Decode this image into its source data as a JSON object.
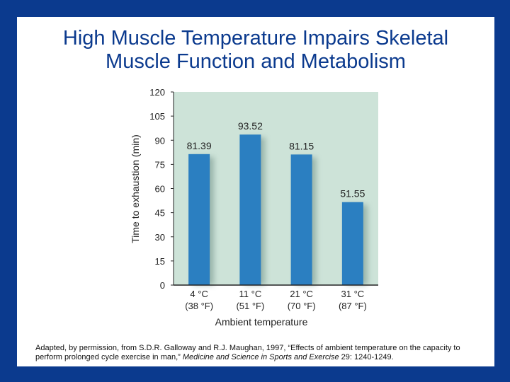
{
  "slide": {
    "title_line1": "High Muscle Temperature Impairs Skeletal",
    "title_line2": "Muscle Function and Metabolism",
    "caption": {
      "before_italic": "Adapted, by permission, from S.D.R. Galloway and R.J. Maughan, 1997, “Effects of ambient temperature on the capacity to perform prolonged cycle exercise in man,” ",
      "italic": "Medicine and Science in Sports and Exercise",
      "after_italic": " 29: 1240-1249."
    }
  },
  "colors": {
    "background": "#0b3a8e",
    "plot_area": "#cde3d8",
    "bar": "#2b7fc1",
    "title": "#0b3a8e"
  },
  "chart_data": {
    "type": "bar",
    "categories": [
      "4 °C",
      "11 °C",
      "21 °C",
      "31 °C"
    ],
    "category_sublabels": [
      "(38 °F)",
      "(51 °F)",
      "(70 °F)",
      "(87 °F)"
    ],
    "values": [
      81.39,
      93.52,
      81.15,
      51.55
    ],
    "data_labels": [
      "81.39",
      "93.52",
      "81.15",
      "51.55"
    ],
    "title": "",
    "xlabel": "Ambient temperature",
    "ylabel": "Time to exhaustion (min)",
    "ylim": [
      0,
      120
    ],
    "yticks": [
      0,
      15,
      30,
      45,
      60,
      75,
      90,
      105,
      120
    ],
    "grid": false,
    "legend": "none"
  }
}
